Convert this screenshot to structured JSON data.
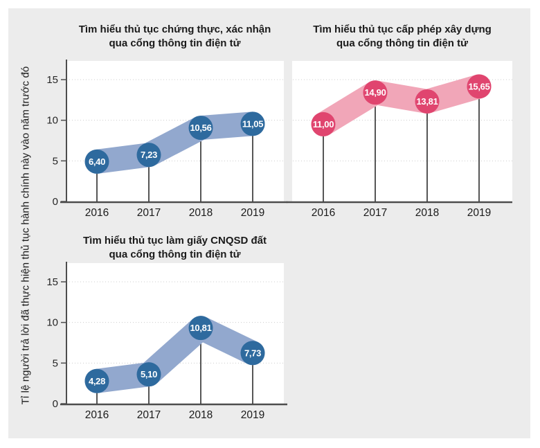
{
  "figure": {
    "y_axis_label": "Tỉ lệ người trả lời đã thực hiện thủ tục hành chính này vào năm trước đó"
  },
  "colors": {
    "page_bg": "#ffffff",
    "panel_bg": "#ececec",
    "plot_bg": "#ffffff",
    "axis": "#4d4d4d",
    "grid": "#cccccc",
    "needle": "#2b2b2b",
    "text": "#1a1a1a",
    "tick_text": "#262626",
    "dot_label": "#ffffff"
  },
  "chart_data": [
    {
      "type": "line",
      "title_line1": "Tìm hiểu thủ tục chứng thực, xác nhận",
      "title_line2": "qua cổng thông tin điện tử",
      "categories": [
        "2016",
        "2017",
        "2018",
        "2019"
      ],
      "values": [
        6.4,
        7.23,
        10.56,
        11.05
      ],
      "labels": [
        "6,40",
        "7,23",
        "10,56",
        "11,05"
      ],
      "dot_color": "#2e6a9e",
      "band_color": "#92a8ce",
      "ylim": [
        0,
        17
      ],
      "yticks": [
        0,
        5,
        10,
        15
      ],
      "show_y_axis": true,
      "grid": "dotted-horizontal",
      "position": "top-left"
    },
    {
      "type": "line",
      "title_line1": "Tìm hiểu thủ tục cấp phép xây dựng",
      "title_line2": "qua cổng thông tin điện tử",
      "categories": [
        "2016",
        "2017",
        "2018",
        "2019"
      ],
      "values": [
        11.0,
        14.9,
        13.81,
        15.65
      ],
      "labels": [
        "11,00",
        "14,90",
        "13,81",
        "15,65"
      ],
      "dot_color": "#e0456f",
      "band_color": "#f1a6b8",
      "ylim": [
        0,
        17
      ],
      "yticks": [
        0,
        5,
        10,
        15
      ],
      "show_y_axis": false,
      "grid": "dotted-horizontal",
      "position": "top-right"
    },
    {
      "type": "line",
      "title_line1": "Tìm hiểu thủ tục làm giấy CNQSD đất",
      "title_line2": "qua cổng thông tin điện tử",
      "categories": [
        "2016",
        "2017",
        "2018",
        "2019"
      ],
      "values": [
        4.28,
        5.1,
        10.81,
        7.73
      ],
      "labels": [
        "4,28",
        "5,10",
        "10,81",
        "7,73"
      ],
      "dot_color": "#2e6a9e",
      "band_color": "#92a8ce",
      "ylim": [
        0,
        17
      ],
      "yticks": [
        0,
        5,
        10,
        15
      ],
      "show_y_axis": true,
      "grid": "dotted-horizontal",
      "position": "bottom-left"
    }
  ]
}
